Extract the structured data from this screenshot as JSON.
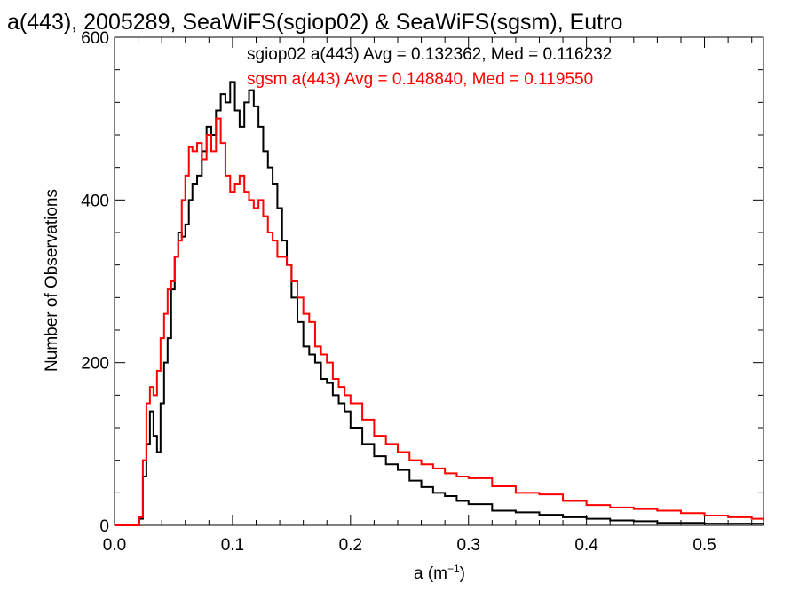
{
  "chart_data": {
    "type": "histogram",
    "title": "a(443), 2005289, SeaWiFS(sgiop02) & SeaWiFS(sgsm), Eutro",
    "xlabel_base": "a (m",
    "xlabel_sup": "−1",
    "xlabel_end": ")",
    "ylabel": "Number of Observations",
    "xlim": [
      0.0,
      0.55
    ],
    "ylim": [
      0,
      600
    ],
    "x_ticks": [
      0.0,
      0.1,
      0.2,
      0.3,
      0.4,
      0.5
    ],
    "x_tick_labels": [
      "0.0",
      "0.1",
      "0.2",
      "0.3",
      "0.4",
      "0.5"
    ],
    "y_ticks": [
      0,
      200,
      400,
      600
    ],
    "y_tick_labels": [
      "0",
      "200",
      "400",
      "600"
    ],
    "grid": false,
    "legend_position": "top-right",
    "series": [
      {
        "name": "sgiop02 a(443) Avg = 0.132362, Med = 0.116232",
        "color": "#000000",
        "points": [
          [
            0.0,
            0
          ],
          [
            0.018,
            0
          ],
          [
            0.021,
            8
          ],
          [
            0.024,
            60
          ],
          [
            0.027,
            100
          ],
          [
            0.03,
            140
          ],
          [
            0.033,
            110
          ],
          [
            0.036,
            90
          ],
          [
            0.039,
            150
          ],
          [
            0.042,
            200
          ],
          [
            0.045,
            230
          ],
          [
            0.048,
            290
          ],
          [
            0.051,
            330
          ],
          [
            0.054,
            360
          ],
          [
            0.057,
            355
          ],
          [
            0.06,
            370
          ],
          [
            0.063,
            400
          ],
          [
            0.066,
            420
          ],
          [
            0.07,
            430
          ],
          [
            0.074,
            460
          ],
          [
            0.078,
            490
          ],
          [
            0.082,
            480
          ],
          [
            0.086,
            510
          ],
          [
            0.09,
            530
          ],
          [
            0.094,
            520
          ],
          [
            0.098,
            545
          ],
          [
            0.102,
            510
          ],
          [
            0.106,
            490
          ],
          [
            0.11,
            520
          ],
          [
            0.114,
            535
          ],
          [
            0.118,
            515
          ],
          [
            0.122,
            490
          ],
          [
            0.126,
            460
          ],
          [
            0.13,
            440
          ],
          [
            0.134,
            420
          ],
          [
            0.138,
            390
          ],
          [
            0.142,
            350
          ],
          [
            0.146,
            320
          ],
          [
            0.15,
            280
          ],
          [
            0.155,
            250
          ],
          [
            0.16,
            220
          ],
          [
            0.165,
            210
          ],
          [
            0.17,
            200
          ],
          [
            0.175,
            180
          ],
          [
            0.18,
            175
          ],
          [
            0.185,
            160
          ],
          [
            0.19,
            150
          ],
          [
            0.195,
            140
          ],
          [
            0.2,
            120
          ],
          [
            0.21,
            100
          ],
          [
            0.22,
            85
          ],
          [
            0.23,
            75
          ],
          [
            0.24,
            68
          ],
          [
            0.25,
            55
          ],
          [
            0.26,
            47
          ],
          [
            0.27,
            40
          ],
          [
            0.28,
            36
          ],
          [
            0.29,
            30
          ],
          [
            0.3,
            26
          ],
          [
            0.32,
            18
          ],
          [
            0.34,
            16
          ],
          [
            0.36,
            13
          ],
          [
            0.38,
            10
          ],
          [
            0.4,
            8
          ],
          [
            0.42,
            6
          ],
          [
            0.44,
            5
          ],
          [
            0.46,
            3
          ],
          [
            0.48,
            3
          ],
          [
            0.5,
            2
          ],
          [
            0.55,
            0
          ]
        ]
      },
      {
        "name": "sgsm a(443) Avg = 0.148840, Med = 0.119550",
        "color": "#ff0000",
        "points": [
          [
            0.0,
            0
          ],
          [
            0.018,
            0
          ],
          [
            0.021,
            10
          ],
          [
            0.024,
            80
          ],
          [
            0.027,
            150
          ],
          [
            0.03,
            170
          ],
          [
            0.033,
            160
          ],
          [
            0.036,
            190
          ],
          [
            0.039,
            230
          ],
          [
            0.042,
            260
          ],
          [
            0.045,
            290
          ],
          [
            0.048,
            300
          ],
          [
            0.051,
            330
          ],
          [
            0.054,
            350
          ],
          [
            0.057,
            400
          ],
          [
            0.06,
            430
          ],
          [
            0.063,
            465
          ],
          [
            0.066,
            460
          ],
          [
            0.07,
            470
          ],
          [
            0.074,
            450
          ],
          [
            0.078,
            480
          ],
          [
            0.082,
            460
          ],
          [
            0.086,
            500
          ],
          [
            0.09,
            470
          ],
          [
            0.094,
            430
          ],
          [
            0.098,
            410
          ],
          [
            0.102,
            420
          ],
          [
            0.106,
            430
          ],
          [
            0.11,
            410
          ],
          [
            0.114,
            400
          ],
          [
            0.118,
            390
          ],
          [
            0.122,
            400
          ],
          [
            0.126,
            380
          ],
          [
            0.13,
            360
          ],
          [
            0.134,
            350
          ],
          [
            0.138,
            330
          ],
          [
            0.142,
            330
          ],
          [
            0.146,
            320
          ],
          [
            0.15,
            300
          ],
          [
            0.155,
            280
          ],
          [
            0.16,
            260
          ],
          [
            0.165,
            250
          ],
          [
            0.17,
            220
          ],
          [
            0.175,
            210
          ],
          [
            0.18,
            200
          ],
          [
            0.185,
            180
          ],
          [
            0.19,
            170
          ],
          [
            0.195,
            160
          ],
          [
            0.2,
            150
          ],
          [
            0.21,
            130
          ],
          [
            0.22,
            110
          ],
          [
            0.23,
            100
          ],
          [
            0.24,
            90
          ],
          [
            0.25,
            80
          ],
          [
            0.26,
            75
          ],
          [
            0.27,
            70
          ],
          [
            0.28,
            64
          ],
          [
            0.29,
            60
          ],
          [
            0.3,
            58
          ],
          [
            0.32,
            48
          ],
          [
            0.34,
            40
          ],
          [
            0.36,
            38
          ],
          [
            0.38,
            30
          ],
          [
            0.4,
            25
          ],
          [
            0.42,
            22
          ],
          [
            0.44,
            20
          ],
          [
            0.46,
            18
          ],
          [
            0.48,
            15
          ],
          [
            0.5,
            12
          ],
          [
            0.52,
            10
          ],
          [
            0.54,
            8
          ],
          [
            0.55,
            6
          ]
        ]
      }
    ]
  }
}
